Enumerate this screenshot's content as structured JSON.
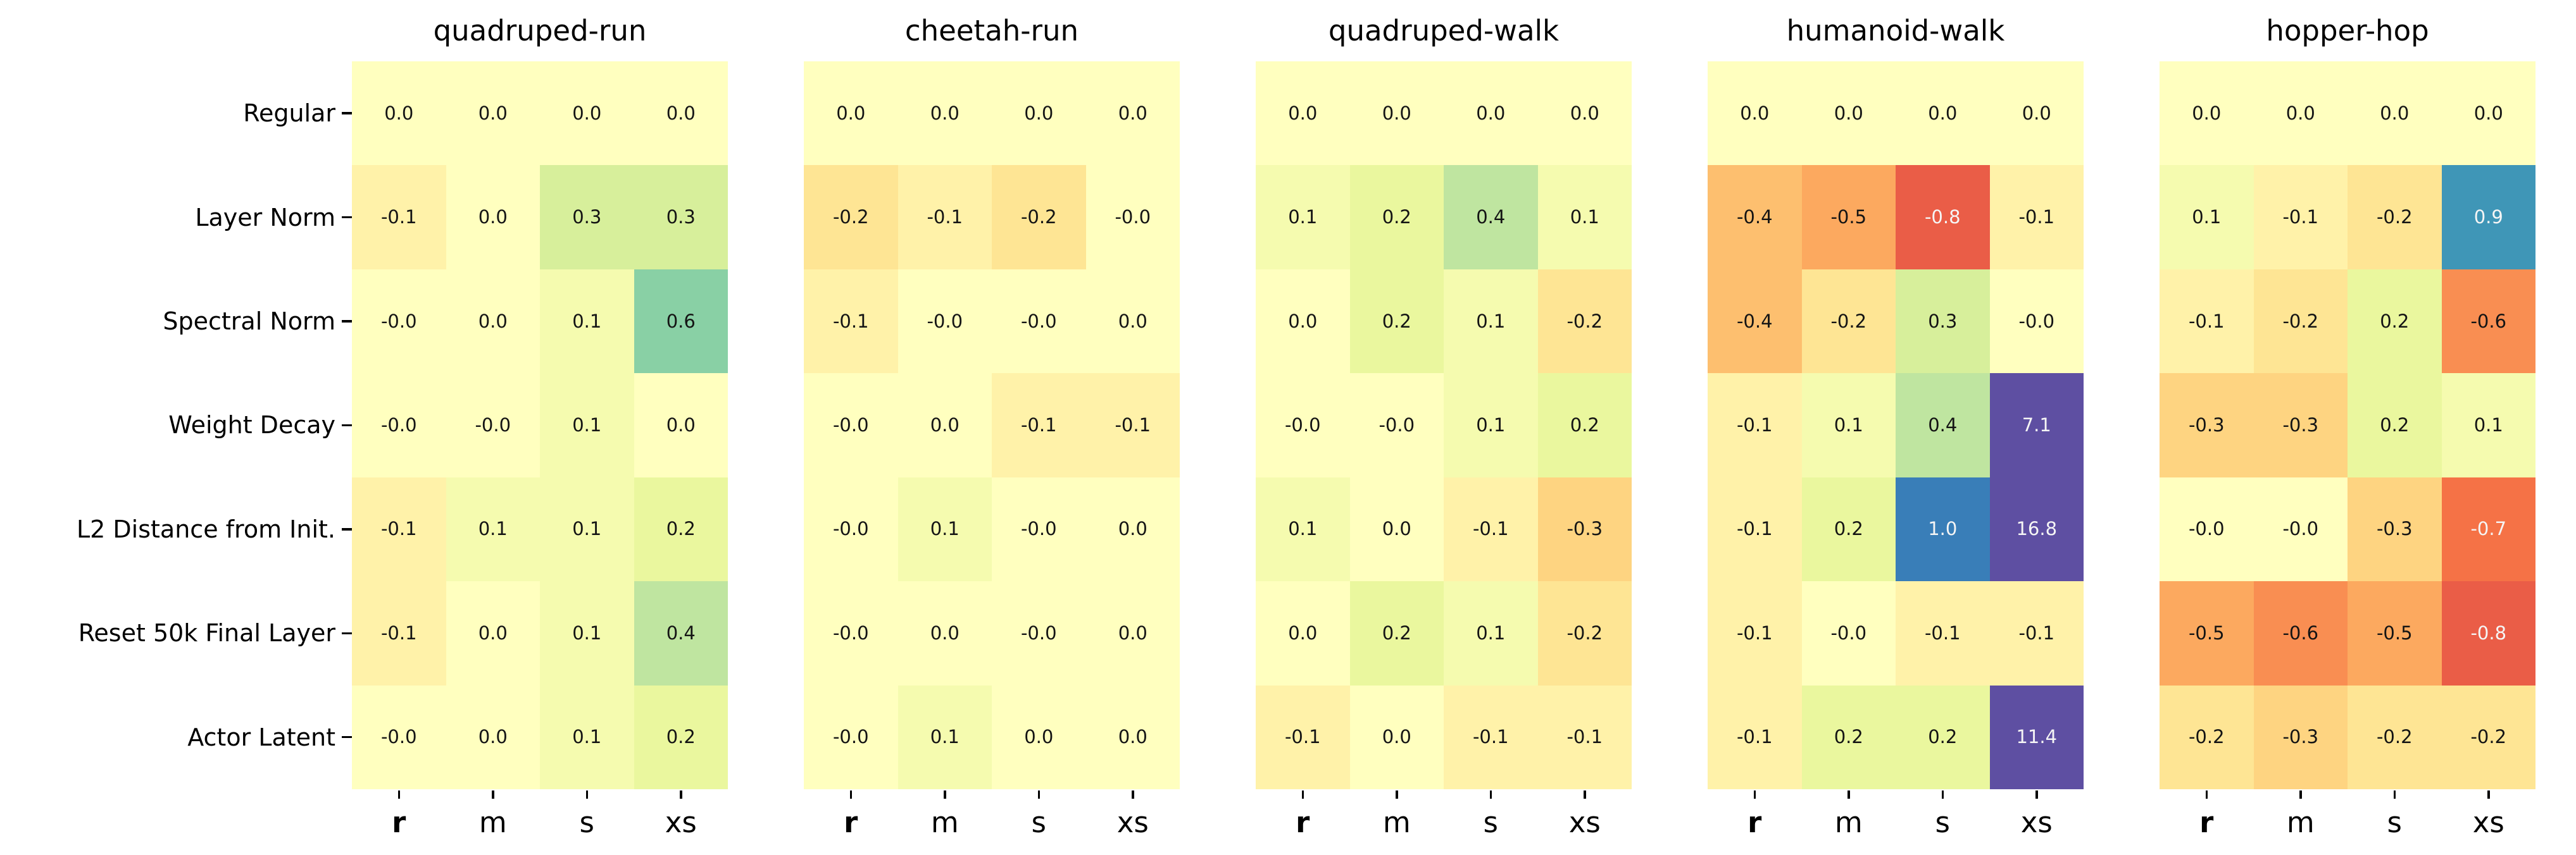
{
  "figure": {
    "background": "#ffffff",
    "colormap": {
      "name": "Spectral",
      "vmin": -1.2,
      "vmax": 1.2,
      "anchors": [
        "#9e0142",
        "#d53e4f",
        "#f46d43",
        "#fdae61",
        "#fee08b",
        "#ffffbf",
        "#e6f598",
        "#abdda4",
        "#66c2a5",
        "#3288bd",
        "#5e4fa2"
      ]
    },
    "text_colors": {
      "dark": "#141414",
      "light": "#f5f5f5"
    }
  },
  "chart_data": {
    "type": "heatmap",
    "x_categories": [
      "r",
      "m",
      "s",
      "xs"
    ],
    "bold_x_category": "r",
    "y_categories": [
      "Regular",
      "Layer Norm",
      "Spectral Norm",
      "Weight Decay",
      "L2 Distance from Init.",
      "Reset 50k Final Layer",
      "Actor Latent"
    ],
    "legend": "none",
    "grid": "off",
    "panels": [
      {
        "title": "quadruped-run",
        "values": [
          [
            "0.0",
            "0.0",
            "0.0",
            "0.0"
          ],
          [
            "-0.1",
            "0.0",
            "0.3",
            "0.3"
          ],
          [
            "-0.0",
            "0.0",
            "0.1",
            "0.6"
          ],
          [
            "-0.0",
            "-0.0",
            "0.1",
            "0.0"
          ],
          [
            "-0.1",
            "0.1",
            "0.1",
            "0.2"
          ],
          [
            "-0.1",
            "0.0",
            "0.1",
            "0.4"
          ],
          [
            "-0.0",
            "0.0",
            "0.1",
            "0.2"
          ]
        ]
      },
      {
        "title": "cheetah-run",
        "values": [
          [
            "0.0",
            "0.0",
            "0.0",
            "0.0"
          ],
          [
            "-0.2",
            "-0.1",
            "-0.2",
            "-0.0"
          ],
          [
            "-0.1",
            "-0.0",
            "-0.0",
            "0.0"
          ],
          [
            "-0.0",
            "0.0",
            "-0.1",
            "-0.1"
          ],
          [
            "-0.0",
            "0.1",
            "-0.0",
            "0.0"
          ],
          [
            "-0.0",
            "0.0",
            "-0.0",
            "0.0"
          ],
          [
            "-0.0",
            "0.1",
            "0.0",
            "0.0"
          ]
        ]
      },
      {
        "title": "quadruped-walk",
        "values": [
          [
            "0.0",
            "0.0",
            "0.0",
            "0.0"
          ],
          [
            "0.1",
            "0.2",
            "0.4",
            "0.1"
          ],
          [
            "0.0",
            "0.2",
            "0.1",
            "-0.2"
          ],
          [
            "-0.0",
            "-0.0",
            "0.1",
            "0.2"
          ],
          [
            "0.1",
            "0.0",
            "-0.1",
            "-0.3"
          ],
          [
            "0.0",
            "0.2",
            "0.1",
            "-0.2"
          ],
          [
            "-0.1",
            "0.0",
            "-0.1",
            "-0.1"
          ]
        ]
      },
      {
        "title": "humanoid-walk",
        "values": [
          [
            "0.0",
            "0.0",
            "0.0",
            "0.0"
          ],
          [
            "-0.4",
            "-0.5",
            "-0.8",
            "-0.1"
          ],
          [
            "-0.4",
            "-0.2",
            "0.3",
            "-0.0"
          ],
          [
            "-0.1",
            "0.1",
            "0.4",
            "7.1"
          ],
          [
            "-0.1",
            "0.2",
            "1.0",
            "16.8"
          ],
          [
            "-0.1",
            "-0.0",
            "-0.1",
            "-0.1"
          ],
          [
            "-0.1",
            "0.2",
            "0.2",
            "11.4"
          ]
        ]
      },
      {
        "title": "hopper-hop",
        "values": [
          [
            "0.0",
            "0.0",
            "0.0",
            "0.0"
          ],
          [
            "0.1",
            "-0.1",
            "-0.2",
            "0.9"
          ],
          [
            "-0.1",
            "-0.2",
            "0.2",
            "-0.6"
          ],
          [
            "-0.3",
            "-0.3",
            "0.2",
            "0.1"
          ],
          [
            "-0.0",
            "-0.0",
            "-0.3",
            "-0.7"
          ],
          [
            "-0.5",
            "-0.6",
            "-0.5",
            "-0.8"
          ],
          [
            "-0.2",
            "-0.3",
            "-0.2",
            "-0.2"
          ]
        ]
      }
    ]
  }
}
